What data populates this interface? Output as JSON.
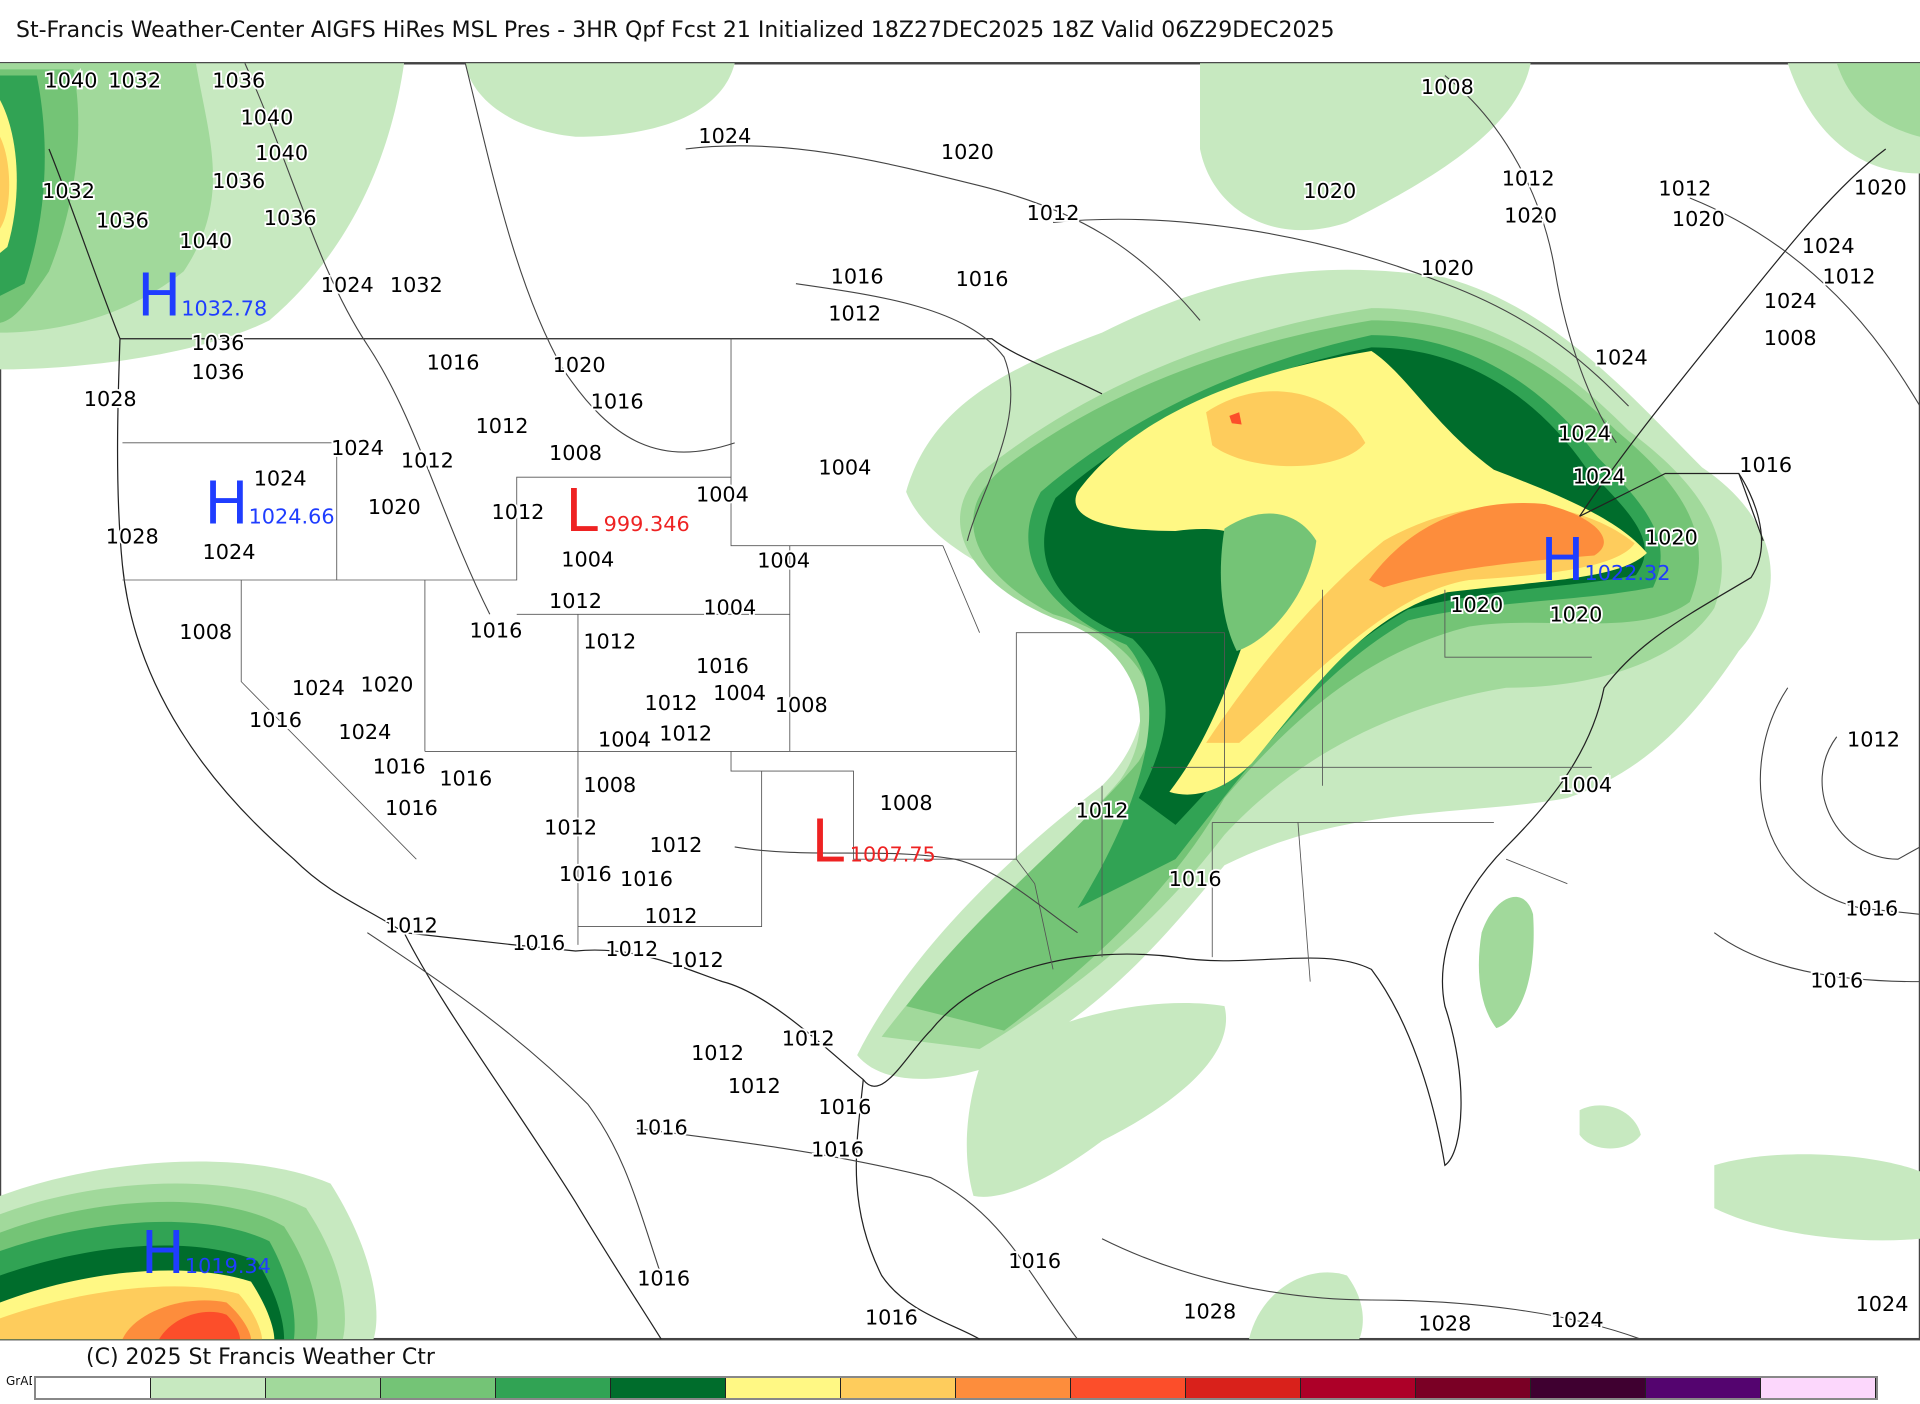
{
  "title": "St-Francis Weather-Center AIGFS HiRes MSL Pres - 3HR Qpf Fcst 21 Initialized 18Z27DEC2025 18Z Valid 06Z29DEC2025",
  "copyright": "(C) 2025 St Francis Weather Ctr",
  "footer_tag": "GrADS/COLA",
  "colorbar": {
    "colors": [
      "#ffffff",
      "#c7e9c0",
      "#a1d99b",
      "#74c476",
      "#31a354",
      "#006d2c",
      "#fff884",
      "#fecc5c",
      "#fd8d3c",
      "#fc4e2a",
      "#d9211b",
      "#ad0028",
      "#7a0025",
      "#3f0030",
      "#54046f",
      "#fcd7fc"
    ]
  },
  "pressure_centers": [
    {
      "type": "H",
      "value": "1032.78",
      "color": "#1f3dff"
    },
    {
      "type": "H",
      "value": "1024.66",
      "color": "#1f3dff"
    },
    {
      "type": "L",
      "value": "999.346",
      "color": "#ee2222"
    },
    {
      "type": "L",
      "value": "1007.75",
      "color": "#ee2222"
    },
    {
      "type": "H",
      "value": "1022.32",
      "color": "#1f3dff"
    },
    {
      "type": "H",
      "value": "1019.34",
      "color": "#1f3dff"
    }
  ],
  "isobar_labels": [
    "1040",
    "1032",
    "1036",
    "1040",
    "1040",
    "1032",
    "1036",
    "1036",
    "1036",
    "1040",
    "1024",
    "1032",
    "1036",
    "1036",
    "1024",
    "1028",
    "1020",
    "1016",
    "1012",
    "1024",
    "1024",
    "1028",
    "1024",
    "1020",
    "1020",
    "1016",
    "1016",
    "1012",
    "1008",
    "1004",
    "1004",
    "1004",
    "1004",
    "1004",
    "1012",
    "1012",
    "1016",
    "1012",
    "1008",
    "1024",
    "1020",
    "1016",
    "1024",
    "1016",
    "1016",
    "1016",
    "1016",
    "1012",
    "1004",
    "1008",
    "1004",
    "1008",
    "1012",
    "1012",
    "1016",
    "1016",
    "1012",
    "1012",
    "1012",
    "1012",
    "1012",
    "1016",
    "1012",
    "1012",
    "1012",
    "1016",
    "1016",
    "1008",
    "1012",
    "1016",
    "1020",
    "1020",
    "1020",
    "1024",
    "1024",
    "1024",
    "1024",
    "1024",
    "1020",
    "1020",
    "1020",
    "1016",
    "1004",
    "1008",
    "1012",
    "1016",
    "1016",
    "1016",
    "1016",
    "1016",
    "1016",
    "1028",
    "1028",
    "1024",
    "1024",
    "1020",
    "1020",
    "1008",
    "1012",
    "1012",
    "1012",
    "1012",
    "1012",
    "1016"
  ]
}
